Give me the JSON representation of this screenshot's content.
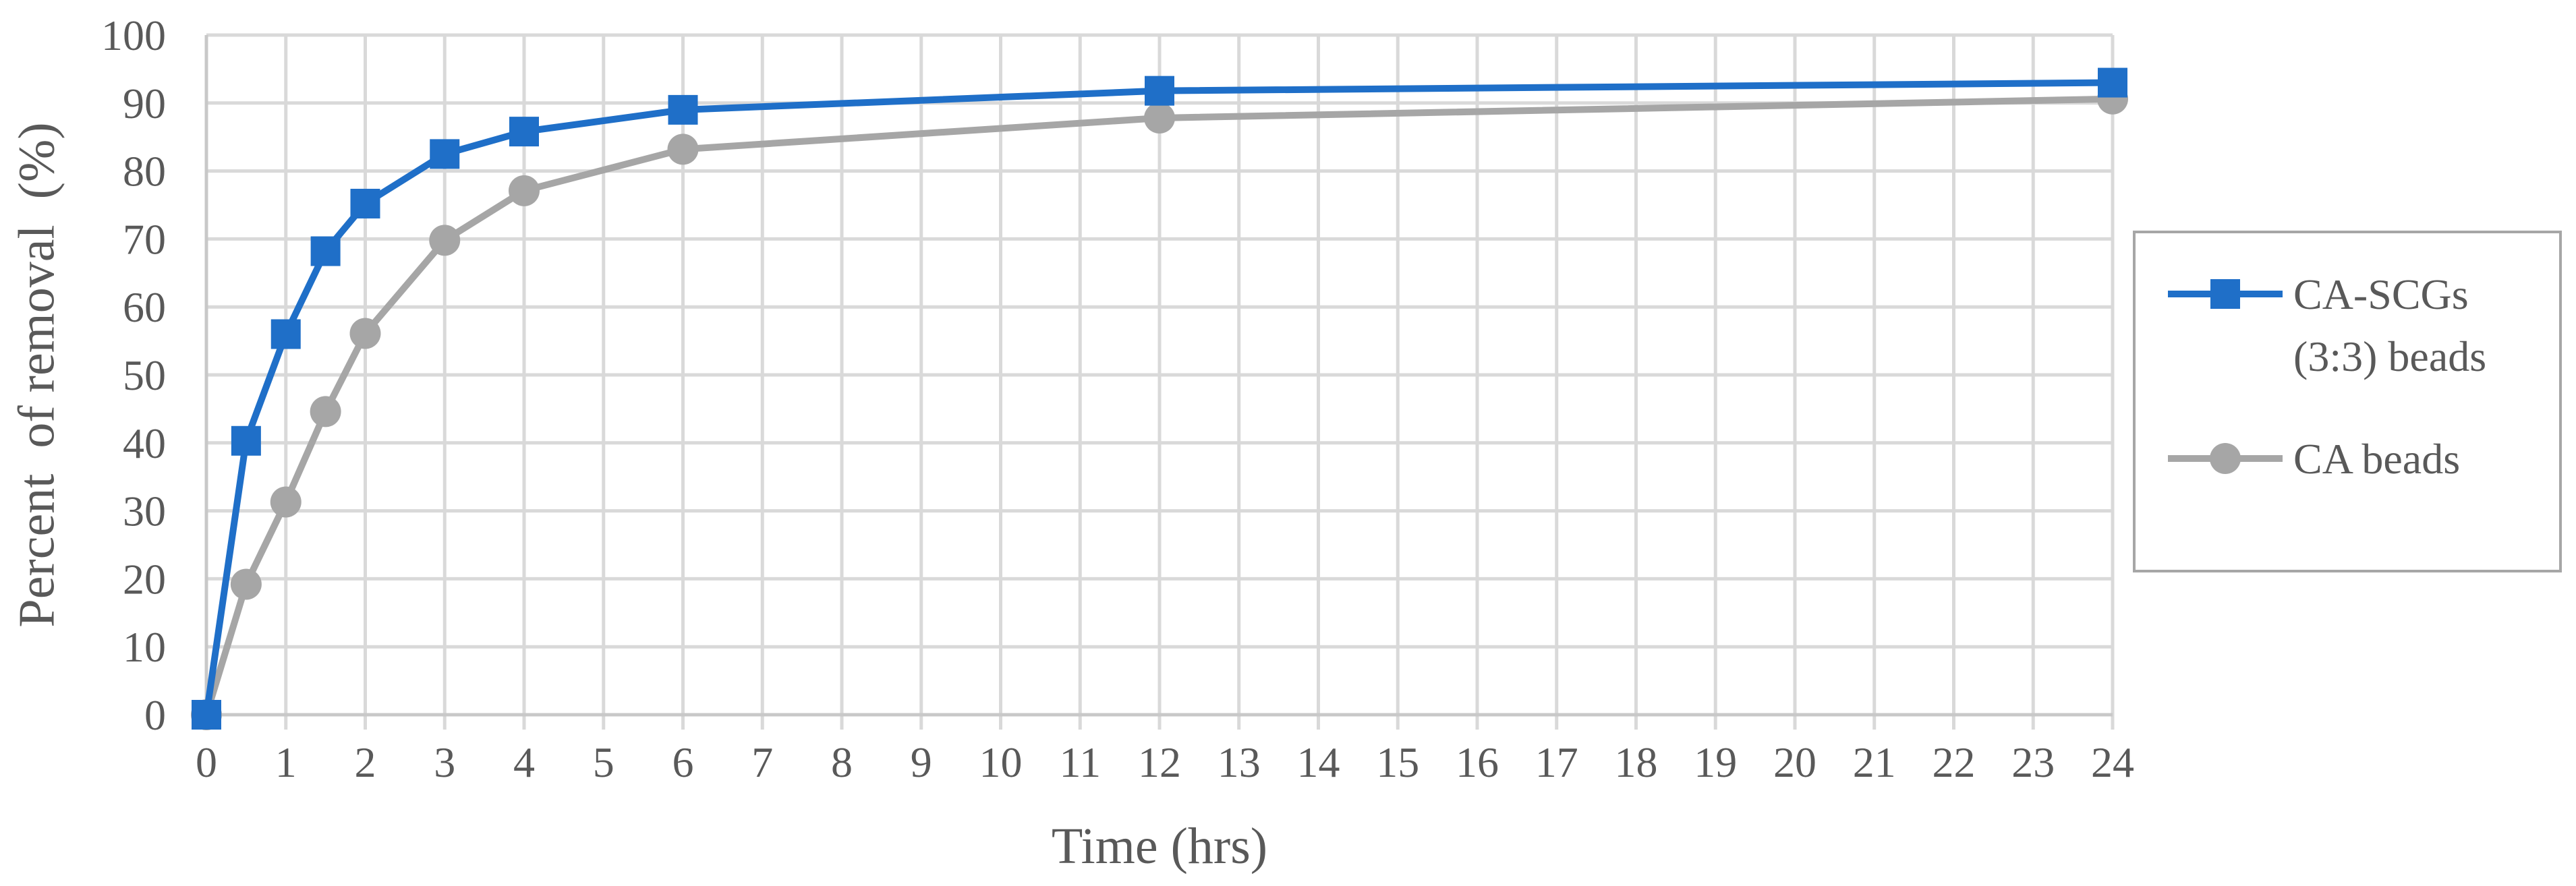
{
  "chart_data": {
    "type": "line",
    "title": "",
    "xlabel": "Time (hrs)",
    "ylabel": "Percent  of removal  (%)",
    "xlim": [
      0,
      24
    ],
    "ylim": [
      0,
      100
    ],
    "x_ticks": [
      0,
      1,
      2,
      3,
      4,
      5,
      6,
      7,
      8,
      9,
      10,
      11,
      12,
      13,
      14,
      15,
      16,
      17,
      18,
      19,
      20,
      21,
      22,
      23,
      24
    ],
    "y_ticks": [
      0,
      10,
      20,
      30,
      40,
      50,
      60,
      70,
      80,
      90,
      100
    ],
    "grid": true,
    "legend_position": "right",
    "series": [
      {
        "name": "CA-SCGs (3:3) beads",
        "legend_lines": [
          "CA-SCGs",
          "(3:3) beads"
        ],
        "color": "#1f6fc8",
        "marker": "square",
        "x": [
          0,
          0.5,
          1,
          1.5,
          2,
          3,
          4,
          6,
          12,
          24
        ],
        "y": [
          0,
          40.3,
          56,
          68.2,
          75.2,
          82.5,
          85.8,
          89,
          91.8,
          93
        ]
      },
      {
        "name": "CA beads",
        "legend_lines": [
          "CA beads"
        ],
        "color": "#a6a6a6",
        "marker": "circle",
        "x": [
          0,
          0.5,
          1,
          1.5,
          2,
          3,
          4,
          6,
          12,
          24
        ],
        "y": [
          0,
          19.2,
          31.3,
          44.6,
          56.1,
          69.8,
          77.1,
          83.2,
          87.8,
          90.6
        ]
      }
    ]
  }
}
